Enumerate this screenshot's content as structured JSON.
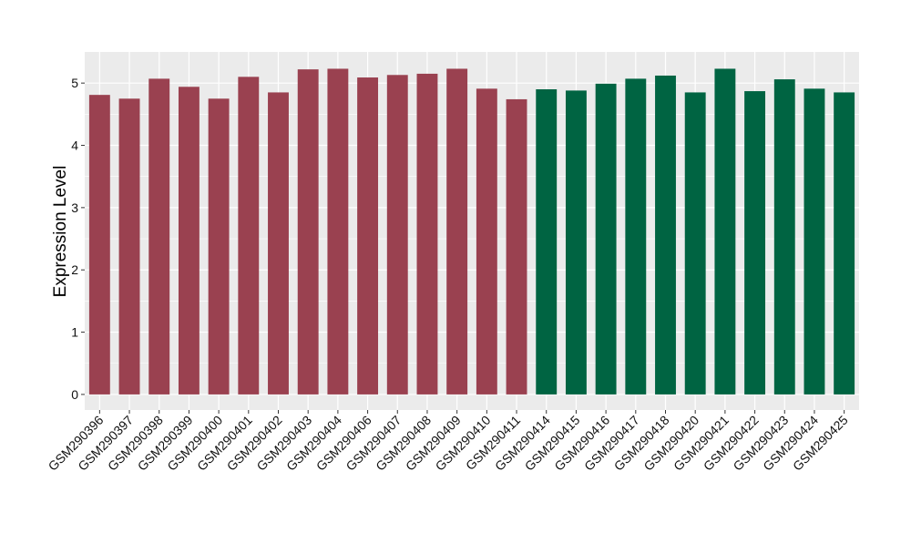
{
  "chart_data": {
    "type": "bar",
    "title": "",
    "xlabel": "",
    "ylabel": "Expression Level",
    "ylim": [
      -0.25,
      5.5
    ],
    "yticks": [
      0,
      1,
      2,
      3,
      4,
      5
    ],
    "grid": true,
    "legend": "none",
    "categories": [
      "GSM290396",
      "GSM290397",
      "GSM290398",
      "GSM290399",
      "GSM290400",
      "GSM290401",
      "GSM290402",
      "GSM290403",
      "GSM290404",
      "GSM290406",
      "GSM290407",
      "GSM290408",
      "GSM290409",
      "GSM290410",
      "GSM290411",
      "GSM290414",
      "GSM290415",
      "GSM290416",
      "GSM290417",
      "GSM290418",
      "GSM290420",
      "GSM290421",
      "GSM290422",
      "GSM290423",
      "GSM290424",
      "GSM290425"
    ],
    "values": [
      4.81,
      4.75,
      5.07,
      4.94,
      4.75,
      5.1,
      4.85,
      5.22,
      5.23,
      5.09,
      5.13,
      5.15,
      5.23,
      4.91,
      4.74,
      4.9,
      4.88,
      4.99,
      5.07,
      5.12,
      4.85,
      5.23,
      4.87,
      5.06,
      4.91,
      4.85
    ],
    "groups": [
      0,
      0,
      0,
      0,
      0,
      0,
      0,
      0,
      0,
      0,
      0,
      0,
      0,
      0,
      0,
      1,
      1,
      1,
      1,
      1,
      1,
      1,
      1,
      1,
      1,
      1
    ],
    "group_colors": [
      "#9a4150",
      "#006442"
    ],
    "panel_background": "#ebebeb",
    "grid_color": "#ffffff"
  }
}
